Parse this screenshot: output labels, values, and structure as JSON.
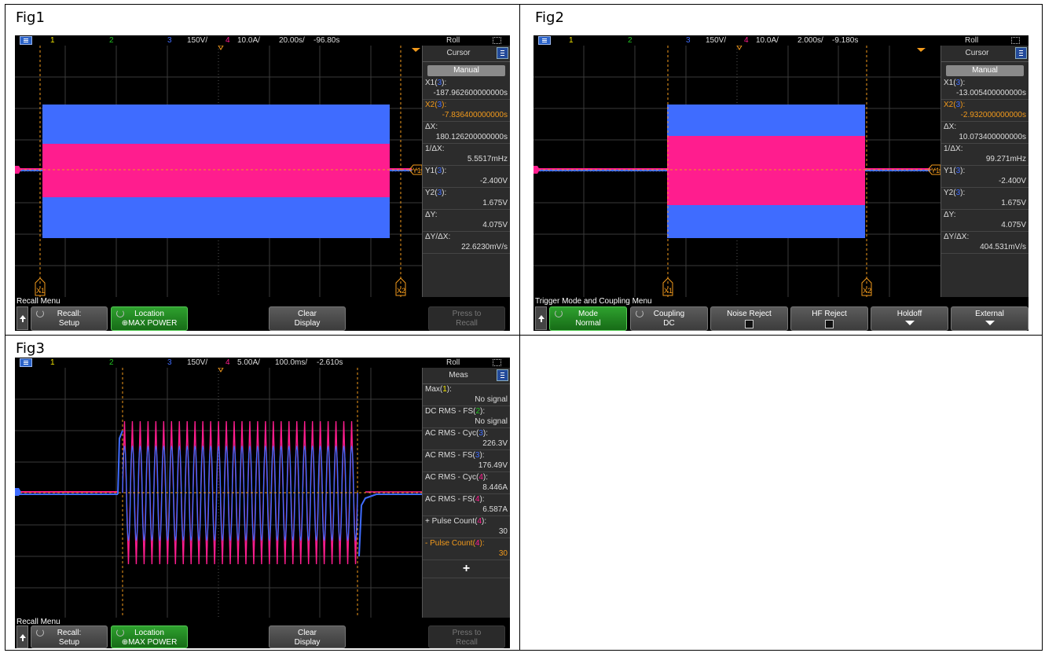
{
  "figs": [
    {
      "label": "Fig1",
      "topbar": {
        "ch1": "1",
        "ch2": "2",
        "ch3": "3",
        "ch3_scale": "150V/",
        "ch4": "4",
        "ch4_scale": "10.0A/",
        "timebase": "20.00s/",
        "delay": "-96.80s",
        "mode": "Roll"
      },
      "panel": {
        "title": "Cursor",
        "manual": "Manual",
        "rows": [
          {
            "k1": "X1(",
            "kn": "3",
            "k2": "):",
            "v": "-187.962600000000s",
            "cls": ""
          },
          {
            "k1": "X2(",
            "kn": "3",
            "k2": "):",
            "v": "-7.836400000000s",
            "cls": "orange"
          },
          {
            "k1": "ΔX:",
            "kn": "",
            "k2": "",
            "v": "180.126200000000s",
            "cls": ""
          },
          {
            "k1": "1/ΔX:",
            "kn": "",
            "k2": "",
            "v": "5.5517mHz",
            "cls": ""
          },
          {
            "k1": "Y1(",
            "kn": "3",
            "k2": "):",
            "v": "-2.400V",
            "cls": ""
          },
          {
            "k1": "Y2(",
            "kn": "3",
            "k2": "):",
            "v": "1.675V",
            "cls": ""
          },
          {
            "k1": "ΔY:",
            "kn": "",
            "k2": "",
            "v": "4.075V",
            "cls": ""
          },
          {
            "k1": "ΔY/ΔX:",
            "kn": "",
            "k2": "",
            "v": "22.6230mV/s",
            "cls": ""
          }
        ]
      },
      "menu_title": "Recall Menu",
      "softkeys": [
        {
          "l1": "Recall:",
          "l2": "Setup",
          "style": "gray"
        },
        {
          "l1": "Location",
          "l2": "⊕MAX POWER",
          "style": "green"
        },
        {
          "l1": "Clear",
          "l2": "Display",
          "style": "gray"
        },
        {
          "l1": "Press to",
          "l2": "Recall",
          "style": "dim"
        }
      ],
      "markers": {
        "x1": "X1",
        "x2": "X2",
        "y1": "Y1"
      }
    },
    {
      "label": "Fig2",
      "topbar": {
        "ch1": "1",
        "ch2": "2",
        "ch3": "3",
        "ch3_scale": "150V/",
        "ch4": "4",
        "ch4_scale": "10.0A/",
        "timebase": "2.000s/",
        "delay": "-9.180s",
        "mode": "Roll"
      },
      "panel": {
        "title": "Cursor",
        "manual": "Manual",
        "rows": [
          {
            "k1": "X1(",
            "kn": "3",
            "k2": "):",
            "v": "-13.005400000000s",
            "cls": ""
          },
          {
            "k1": "X2(",
            "kn": "3",
            "k2": "):",
            "v": "-2.932000000000s",
            "cls": "orange"
          },
          {
            "k1": "ΔX:",
            "kn": "",
            "k2": "",
            "v": "10.073400000000s",
            "cls": ""
          },
          {
            "k1": "1/ΔX:",
            "kn": "",
            "k2": "",
            "v": "99.271mHz",
            "cls": ""
          },
          {
            "k1": "Y1(",
            "kn": "3",
            "k2": "):",
            "v": "-2.400V",
            "cls": ""
          },
          {
            "k1": "Y2(",
            "kn": "3",
            "k2": "):",
            "v": "1.675V",
            "cls": ""
          },
          {
            "k1": "ΔY:",
            "kn": "",
            "k2": "",
            "v": "4.075V",
            "cls": ""
          },
          {
            "k1": "ΔY/ΔX:",
            "kn": "",
            "k2": "",
            "v": "404.531mV/s",
            "cls": ""
          }
        ]
      },
      "menu_title": "Trigger Mode and Coupling Menu",
      "softkeys": [
        {
          "l1": "Mode",
          "l2": "Normal",
          "style": "green"
        },
        {
          "l1": "Coupling",
          "l2": "DC",
          "style": "gray"
        },
        {
          "l1": "Noise Reject",
          "l2": "",
          "style": "gray",
          "extra": "cb"
        },
        {
          "l1": "HF Reject",
          "l2": "",
          "style": "gray",
          "extra": "cb"
        },
        {
          "l1": "Holdoff",
          "l2": "",
          "style": "gray",
          "extra": "arrow"
        },
        {
          "l1": "External",
          "l2": "",
          "style": "gray",
          "extra": "arrow"
        }
      ],
      "markers": {
        "x1": "X1",
        "x2": "X2",
        "y1": "Y1"
      }
    },
    {
      "label": "Fig3",
      "topbar": {
        "ch1": "1",
        "ch2": "2",
        "ch3": "3",
        "ch3_scale": "150V/",
        "ch4": "4",
        "ch4_scale": "5.00A/",
        "timebase": "100.0ms/",
        "delay": "-2.610s",
        "mode": "Roll"
      },
      "panel": {
        "title": "Meas",
        "rows": [
          {
            "k1": "Max(",
            "kn": "1",
            "k2": "):",
            "v": "No signal",
            "cls": "",
            "kc": "y"
          },
          {
            "k1": "DC RMS - FS(",
            "kn": "2",
            "k2": "):",
            "v": "No signal",
            "cls": "",
            "kc": "g"
          },
          {
            "k1": "AC RMS - Cyc(",
            "kn": "3",
            "k2": "):",
            "v": "226.3V",
            "cls": "",
            "kc": "b"
          },
          {
            "k1": "AC RMS - FS(",
            "kn": "3",
            "k2": "):",
            "v": "176.49V",
            "cls": "",
            "kc": "b"
          },
          {
            "k1": "AC RMS - Cyc(",
            "kn": "4",
            "k2": "):",
            "v": "8.446A",
            "cls": "",
            "kc": "p"
          },
          {
            "k1": "AC RMS - FS(",
            "kn": "4",
            "k2": "):",
            "v": "6.587A",
            "cls": "",
            "kc": "p"
          },
          {
            "k1": "+ Pulse Count(",
            "kn": "4",
            "k2": "):",
            "v": "30",
            "cls": "",
            "kc": "p"
          },
          {
            "k1": "- Pulse Count(",
            "kn": "4",
            "k2": "):",
            "v": "30",
            "cls": "orange",
            "kc": "p"
          }
        ],
        "add": "+"
      },
      "menu_title": "Recall Menu",
      "softkeys": [
        {
          "l1": "Recall:",
          "l2": "Setup",
          "style": "gray"
        },
        {
          "l1": "Location",
          "l2": "⊕MAX POWER",
          "style": "green"
        },
        {
          "l1": "Clear",
          "l2": "Display",
          "style": "gray"
        },
        {
          "l1": "Press to",
          "l2": "Recall",
          "style": "dim"
        }
      ]
    }
  ],
  "colors": {
    "ch1": "#f2e600",
    "ch2": "#22c422",
    "ch3": "#3f6cff",
    "ch4": "#ff1d8e",
    "cursor": "#f29a1c"
  }
}
